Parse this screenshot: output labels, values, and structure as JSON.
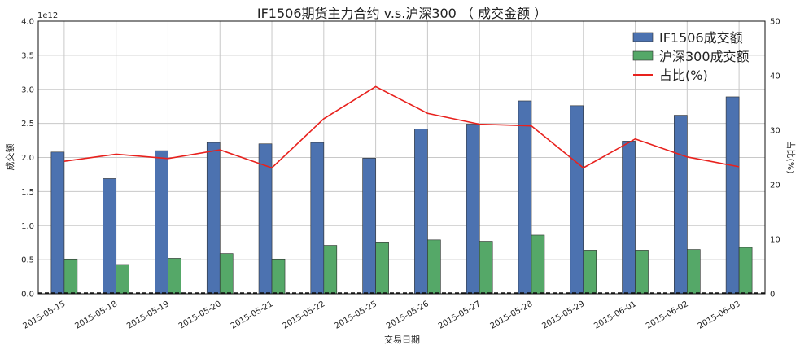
{
  "chart_data": {
    "type": "bar",
    "title": "IF1506期货主力合约 v.s.沪深300 （ 成交金额 ）",
    "xlabel": "交易日期",
    "ylabel": "成交额",
    "y2label": "占比(%)",
    "y_multiplier": "1e12",
    "ylim": [
      0,
      4.0
    ],
    "y2lim": [
      0,
      50
    ],
    "yticks": [
      "0.0",
      "0.5",
      "1.0",
      "1.5",
      "2.0",
      "2.5",
      "3.0",
      "3.5",
      "4.0"
    ],
    "y2ticks": [
      "0",
      "10",
      "20",
      "30",
      "40",
      "50"
    ],
    "grid": true,
    "legend_position": "top-right",
    "categories": [
      "2015-05-15",
      "2015-05-18",
      "2015-05-19",
      "2015-05-20",
      "2015-05-21",
      "2015-05-22",
      "2015-05-25",
      "2015-05-26",
      "2015-05-27",
      "2015-05-28",
      "2015-05-29",
      "2015-06-01",
      "2015-06-02",
      "2015-06-03"
    ],
    "series": [
      {
        "name": "IF1506成交额",
        "kind": "bar",
        "axis": "left",
        "color": "#4c72b0",
        "values": [
          2.08,
          1.69,
          2.1,
          2.22,
          2.2,
          2.22,
          1.99,
          2.42,
          2.49,
          2.83,
          2.76,
          2.24,
          2.62,
          2.89
        ]
      },
      {
        "name": "沪深300成交额",
        "kind": "bar",
        "axis": "left",
        "color": "#55a868",
        "values": [
          0.51,
          0.43,
          0.52,
          0.59,
          0.51,
          0.71,
          0.76,
          0.79,
          0.77,
          0.86,
          0.64,
          0.64,
          0.65,
          0.68
        ]
      },
      {
        "name": "占比(%)",
        "kind": "line",
        "axis": "right",
        "color": "#e8211d",
        "values": [
          24.3,
          25.6,
          24.8,
          26.4,
          23.1,
          32.1,
          38.0,
          33.1,
          31.1,
          30.8,
          23.1,
          28.4,
          25.1,
          23.3
        ]
      }
    ]
  }
}
